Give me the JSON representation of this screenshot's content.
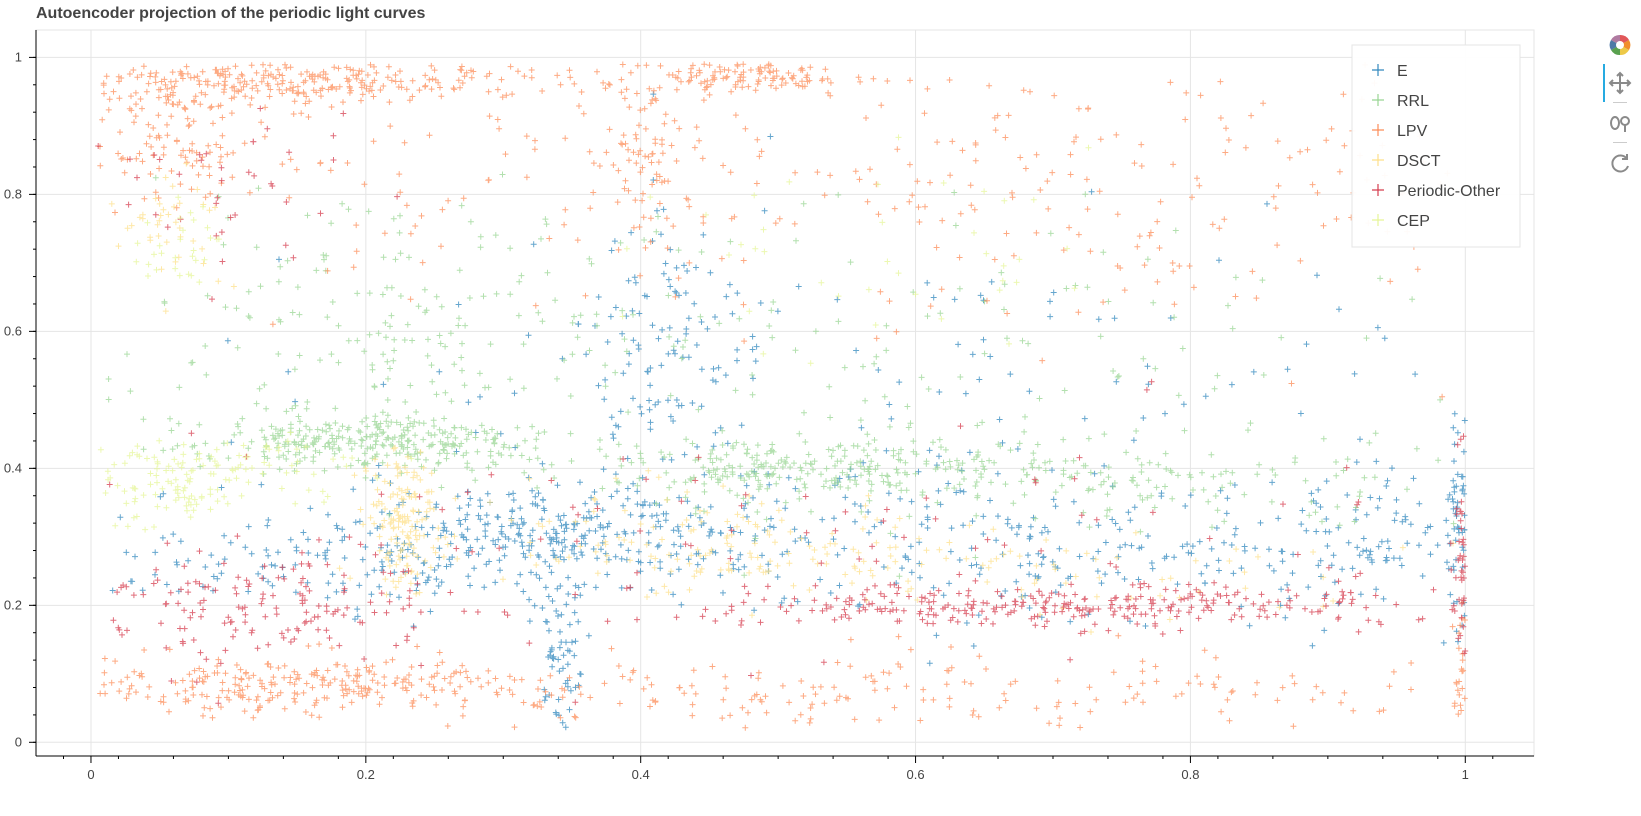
{
  "chart_data": {
    "type": "scatter",
    "title": "Autoencoder projection of the periodic light curves",
    "xlim": [
      -0.04,
      1.05
    ],
    "ylim": [
      -0.02,
      1.04
    ],
    "x_ticks": [
      "0",
      "0.2",
      "0.4",
      "0.6",
      "0.8",
      "1"
    ],
    "y_ticks": [
      "0",
      "0.2",
      "0.4",
      "0.6",
      "0.8",
      "1"
    ],
    "x_tick_values": [
      0,
      0.2,
      0.4,
      0.6,
      0.8,
      1
    ],
    "y_tick_values": [
      0,
      0.2,
      0.4,
      0.6,
      0.8,
      1
    ],
    "grid": true,
    "marker": "cross",
    "legend_position": "top-right",
    "series": [
      {
        "name": "E",
        "color": "#3288bd",
        "clusters": [
          {
            "cx": 0.33,
            "cy": 0.3,
            "sx": 0.07,
            "sy": 0.04,
            "n": 280
          },
          {
            "cx": 0.34,
            "cy": 0.15,
            "sx": 0.008,
            "sy": 0.06,
            "n": 70
          },
          {
            "cx": 0.42,
            "cy": 0.55,
            "sx": 0.03,
            "sy": 0.12,
            "n": 110
          },
          {
            "cx": 0.65,
            "cy": 0.29,
            "sx": 0.18,
            "sy": 0.06,
            "n": 300
          },
          {
            "cx": 0.93,
            "cy": 0.3,
            "sx": 0.06,
            "sy": 0.05,
            "n": 90
          },
          {
            "cx": 0.998,
            "cy": 0.32,
            "sx": 0.004,
            "sy": 0.09,
            "n": 70
          },
          {
            "cx": 0.18,
            "cy": 0.27,
            "sx": 0.09,
            "sy": 0.04,
            "n": 120
          },
          {
            "cx": 0.6,
            "cy": 0.55,
            "sx": 0.25,
            "sy": 0.12,
            "n": 120
          }
        ]
      },
      {
        "name": "RRL",
        "color": "#99d594",
        "clusters": [
          {
            "cx": 0.2,
            "cy": 0.44,
            "sx": 0.06,
            "sy": 0.02,
            "n": 300
          },
          {
            "cx": 0.5,
            "cy": 0.4,
            "sx": 0.06,
            "sy": 0.025,
            "n": 170
          },
          {
            "cx": 0.7,
            "cy": 0.39,
            "sx": 0.15,
            "sy": 0.03,
            "n": 220
          },
          {
            "cx": 0.22,
            "cy": 0.6,
            "sx": 0.1,
            "sy": 0.1,
            "n": 200
          },
          {
            "cx": 0.62,
            "cy": 0.55,
            "sx": 0.18,
            "sy": 0.12,
            "n": 130
          }
        ]
      },
      {
        "name": "LPV",
        "color": "#fc8d59",
        "clusters": [
          {
            "cx": 0.16,
            "cy": 0.965,
            "sx": 0.09,
            "sy": 0.015,
            "n": 260
          },
          {
            "cx": 0.06,
            "cy": 0.9,
            "sx": 0.03,
            "sy": 0.05,
            "n": 120
          },
          {
            "cx": 0.47,
            "cy": 0.97,
            "sx": 0.05,
            "sy": 0.012,
            "n": 130
          },
          {
            "cx": 0.405,
            "cy": 0.88,
            "sx": 0.012,
            "sy": 0.06,
            "n": 70
          },
          {
            "cx": 0.72,
            "cy": 0.82,
            "sx": 0.2,
            "sy": 0.12,
            "n": 260
          },
          {
            "cx": 0.15,
            "cy": 0.08,
            "sx": 0.1,
            "sy": 0.02,
            "n": 280
          },
          {
            "cx": 0.6,
            "cy": 0.08,
            "sx": 0.25,
            "sy": 0.03,
            "n": 200
          },
          {
            "cx": 0.998,
            "cy": 0.1,
            "sx": 0.004,
            "sy": 0.05,
            "n": 40
          },
          {
            "cx": 0.25,
            "cy": 0.85,
            "sx": 0.12,
            "sy": 0.1,
            "n": 90
          }
        ]
      },
      {
        "name": "DSCT",
        "color": "#fee08b",
        "clusters": [
          {
            "cx": 0.23,
            "cy": 0.32,
            "sx": 0.015,
            "sy": 0.05,
            "n": 150
          },
          {
            "cx": 0.45,
            "cy": 0.3,
            "sx": 0.08,
            "sy": 0.04,
            "n": 120
          },
          {
            "cx": 0.65,
            "cy": 0.25,
            "sx": 0.15,
            "sy": 0.04,
            "n": 90
          },
          {
            "cx": 0.06,
            "cy": 0.75,
            "sx": 0.02,
            "sy": 0.05,
            "n": 40
          }
        ]
      },
      {
        "name": "Periodic-Other",
        "color": "#d53e4f",
        "clusters": [
          {
            "cx": 0.7,
            "cy": 0.2,
            "sx": 0.14,
            "sy": 0.015,
            "n": 300
          },
          {
            "cx": 0.12,
            "cy": 0.2,
            "sx": 0.07,
            "sy": 0.04,
            "n": 160
          },
          {
            "cx": 0.998,
            "cy": 0.25,
            "sx": 0.004,
            "sy": 0.09,
            "n": 60
          },
          {
            "cx": 0.55,
            "cy": 0.3,
            "sx": 0.25,
            "sy": 0.08,
            "n": 100
          },
          {
            "cx": 0.1,
            "cy": 0.82,
            "sx": 0.04,
            "sy": 0.06,
            "n": 40
          }
        ]
      },
      {
        "name": "CEP",
        "color": "#e6f598",
        "clusters": [
          {
            "cx": 0.05,
            "cy": 0.37,
            "sx": 0.03,
            "sy": 0.03,
            "n": 90
          },
          {
            "cx": 0.12,
            "cy": 0.4,
            "sx": 0.05,
            "sy": 0.03,
            "n": 60
          },
          {
            "cx": 0.55,
            "cy": 0.7,
            "sx": 0.1,
            "sy": 0.08,
            "n": 40
          },
          {
            "cx": 0.06,
            "cy": 0.74,
            "sx": 0.02,
            "sy": 0.04,
            "n": 30
          }
        ]
      }
    ]
  },
  "toolbar": {
    "logo": "bokeh-logo-icon",
    "tools": [
      "pan-icon",
      "wheel-zoom-icon",
      "reset-icon"
    ]
  }
}
